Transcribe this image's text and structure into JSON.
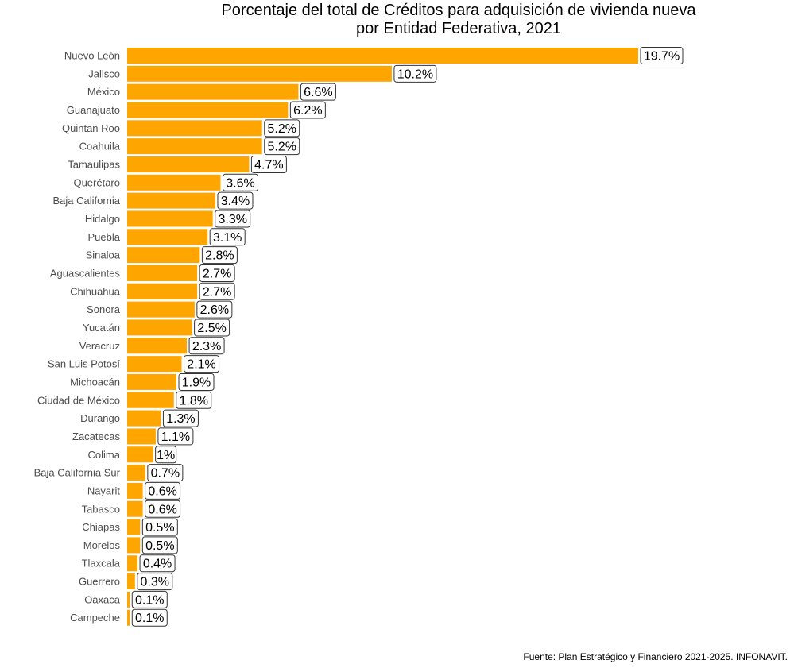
{
  "chart_data": {
    "type": "bar",
    "orientation": "horizontal",
    "title": [
      "Porcentaje del total de Créditos para adquisición de vivienda nueva",
      "por Entidad Federativa, 2021"
    ],
    "xlabel": "",
    "ylabel": "",
    "grid": false,
    "bar_color": "#FFA500",
    "categories": [
      "Nuevo León",
      "Jalisco",
      "México",
      "Guanajuato",
      "Quintan Roo",
      "Coahuila",
      "Tamaulipas",
      "Querétaro",
      "Baja California",
      "Hidalgo",
      "Puebla",
      "Sinaloa",
      "Aguascalientes",
      "Chihuahua",
      "Sonora",
      "Yucatán",
      "Veracruz",
      "San Luis Potosí",
      "Michoacán",
      "Ciudad de México",
      "Durango",
      "Zacatecas",
      "Colima",
      "Baja California Sur",
      "Nayarit",
      "Tabasco",
      "Chiapas",
      "Morelos",
      "Tlaxcala",
      "Guerrero",
      "Oaxaca",
      "Campeche"
    ],
    "values": [
      19.7,
      10.2,
      6.6,
      6.2,
      5.2,
      5.2,
      4.7,
      3.6,
      3.4,
      3.3,
      3.1,
      2.8,
      2.7,
      2.7,
      2.6,
      2.5,
      2.3,
      2.1,
      1.9,
      1.8,
      1.3,
      1.1,
      1,
      0.7,
      0.6,
      0.6,
      0.5,
      0.5,
      0.4,
      0.3,
      0.1,
      0.1
    ],
    "data_labels": [
      "19.7%",
      "10.2%",
      "6.6%",
      "6.2%",
      "5.2%",
      "5.2%",
      "4.7%",
      "3.6%",
      "3.4%",
      "3.3%",
      "3.1%",
      "2.8%",
      "2.7%",
      "2.7%",
      "2.6%",
      "2.5%",
      "2.3%",
      "2.1%",
      "1.9%",
      "1.8%",
      "1.3%",
      "1.1%",
      "1%",
      "0.7%",
      "0.6%",
      "0.6%",
      "0.5%",
      "0.5%",
      "0.4%",
      "0.3%",
      "0.1%",
      "0.1%"
    ]
  },
  "caption": "Fuente: Plan Estratégico y Financiero 2021-2025. INFONAVIT."
}
